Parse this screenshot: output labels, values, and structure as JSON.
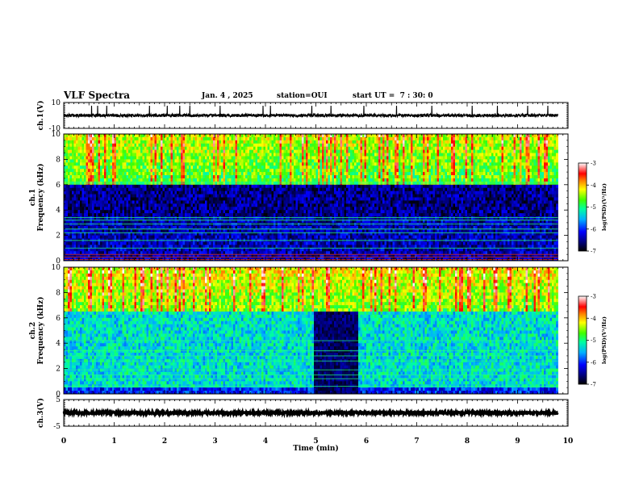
{
  "header": {
    "title": "VLF Spectra",
    "date": "Jan. 4 , 2025",
    "station": "station=OUI",
    "start": "start UT =  7 : 30: 0"
  },
  "chart_data": [
    {
      "type": "line",
      "name": "ch1-waveform",
      "ylabel": "ch.1(V)",
      "ylim": [
        -10,
        10
      ],
      "yticks": [
        "10",
        "-10"
      ],
      "xlim": [
        0,
        10
      ],
      "baseline": 0,
      "noise_amplitude": 1.2,
      "spike_times": [
        0.55,
        0.67,
        0.85,
        1.7,
        2.05,
        2.3,
        2.5,
        3.1,
        3.95,
        4.1,
        4.92,
        5.3,
        5.95,
        6.6,
        7.3,
        8.1,
        8.6,
        9.2,
        9.6
      ],
      "end_time": 9.8
    },
    {
      "type": "heatmap",
      "name": "ch1-spectrogram",
      "ylabel": "ch.1\nFrequency (kHz)",
      "xlim": [
        0,
        10
      ],
      "ylim": [
        0,
        10
      ],
      "yticks": [
        "0",
        "2",
        "4",
        "6",
        "8",
        "10"
      ],
      "colorbar": {
        "label": "log(PSD)(V²/Hz)",
        "range": [
          -7,
          -3
        ],
        "ticks": [
          "-3",
          "-4",
          "-5",
          "-6",
          "-7"
        ]
      },
      "background_level": -6.4,
      "upper_band": {
        "from_khz": 6.0,
        "to_khz": 10.0,
        "level": -4.8
      },
      "dark_band": {
        "from_khz": 3.5,
        "to_khz": 6.0,
        "level": -7.0
      },
      "lines_khz": [
        0.1,
        0.3,
        0.5,
        1.0,
        1.6,
        2.2,
        2.5,
        2.9,
        3.2,
        3.4,
        6.1,
        6.2
      ],
      "quiet_intervals": [],
      "end_time": 9.8
    },
    {
      "type": "heatmap",
      "name": "ch2-spectrogram",
      "ylabel": "ch.2\nFrequency (kHz)",
      "xlim": [
        0,
        10
      ],
      "ylim": [
        0,
        10
      ],
      "yticks": [
        "0",
        "2",
        "4",
        "6",
        "8",
        "10"
      ],
      "colorbar": {
        "label": "log(PSD)(V²/Hz)",
        "range": [
          -7,
          -3
        ],
        "ticks": [
          "-3",
          "-4",
          "-5",
          "-6",
          "-7"
        ]
      },
      "background_level": -5.3,
      "upper_band": {
        "from_khz": 6.5,
        "to_khz": 10.0,
        "level": -4.6
      },
      "dark_band": {
        "from_khz": 0.0,
        "to_khz": 0.6,
        "level": -6.5
      },
      "lines_khz": [
        0.6,
        1.2,
        1.5,
        1.9,
        2.6,
        3.0,
        3.4,
        4.2
      ],
      "quiet_intervals": [
        [
          4.95,
          5.85
        ]
      ],
      "end_time": 9.8
    },
    {
      "type": "line",
      "name": "ch3-waveform",
      "ylabel": "ch.3(V)",
      "ylim": [
        -5,
        5
      ],
      "yticks": [
        "5",
        "-5"
      ],
      "xlim": [
        0,
        10
      ],
      "baseline": 0,
      "noise_amplitude": 0.3,
      "spike_times": [],
      "end_time": 9.8
    }
  ],
  "x_axis": {
    "label": "Time (min)",
    "ticks": [
      "0",
      "1",
      "2",
      "3",
      "4",
      "5",
      "6",
      "7",
      "8",
      "9",
      "10"
    ]
  }
}
